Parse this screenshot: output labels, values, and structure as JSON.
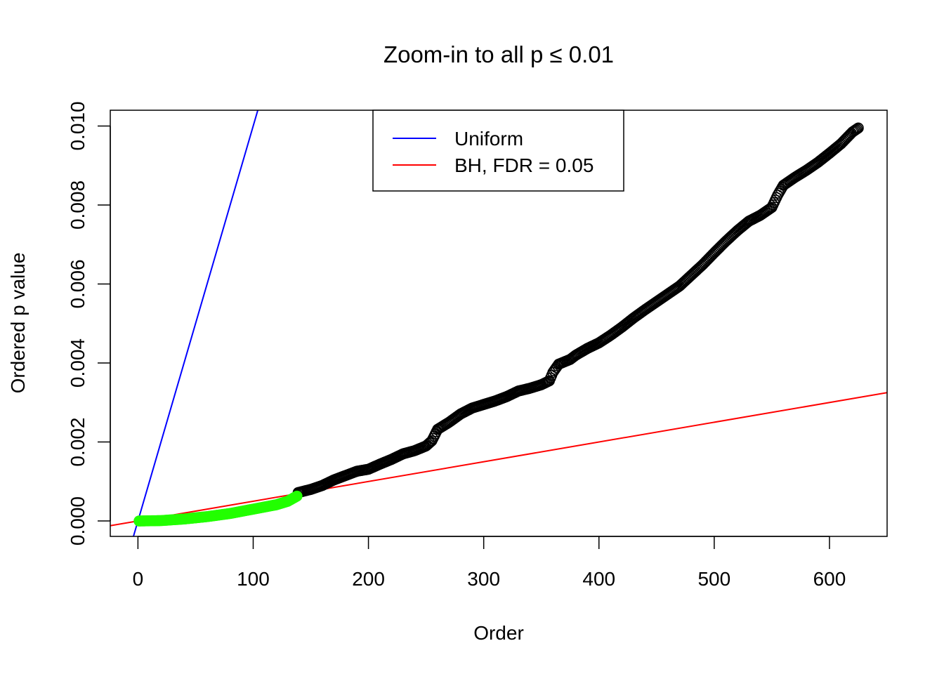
{
  "chart_data": {
    "type": "scatter",
    "title": "Zoom-in to all p ≤ 0.01",
    "xlabel": "Order",
    "ylabel": "Ordered p value",
    "xlim": [
      -24,
      650
    ],
    "ylim": [
      -0.00039,
      0.0104
    ],
    "x_ticks": [
      0,
      100,
      200,
      300,
      400,
      500,
      600
    ],
    "x_tick_labels": [
      "0",
      "100",
      "200",
      "300",
      "400",
      "500",
      "600"
    ],
    "y_ticks": [
      0,
      0.002,
      0.004,
      0.006,
      0.008,
      0.01
    ],
    "y_tick_labels": [
      "0.000",
      "0.002",
      "0.004",
      "0.006",
      "0.008",
      "0.010"
    ],
    "grid": false,
    "legend": {
      "position": "top-center",
      "entries": [
        {
          "label": "Uniform",
          "color": "#0000FF"
        },
        {
          "label": "BH, FDR = 0.05",
          "color": "#FF0000"
        }
      ]
    },
    "reference_lines": [
      {
        "label": "Uniform",
        "slope": 0.0001,
        "intercept": 0,
        "color": "#0000FF"
      },
      {
        "label": "BH, FDR = 0.05",
        "slope": 5e-06,
        "intercept": 0,
        "color": "#FF0000"
      }
    ],
    "series": [
      {
        "role": "significant",
        "color": "#22FF00",
        "filled": true,
        "count": 138,
        "points": [
          [
            1,
            0.0
          ],
          [
            20,
            1e-05
          ],
          [
            40,
            5e-05
          ],
          [
            60,
            0.00011
          ],
          [
            80,
            0.00019
          ],
          [
            100,
            0.0003
          ],
          [
            120,
            0.00041
          ],
          [
            130,
            0.0005
          ],
          [
            138,
            0.00063
          ]
        ]
      },
      {
        "role": "not-significant",
        "color": "#000000",
        "filled": false,
        "count": 487,
        "points": [
          [
            139,
            0.00072
          ],
          [
            150,
            0.0008
          ],
          [
            160,
            0.0009
          ],
          [
            170,
            0.00104
          ],
          [
            180,
            0.00115
          ],
          [
            190,
            0.00126
          ],
          [
            200,
            0.00131
          ],
          [
            210,
            0.00144
          ],
          [
            220,
            0.00156
          ],
          [
            230,
            0.0017
          ],
          [
            240,
            0.00178
          ],
          [
            250,
            0.0019
          ],
          [
            255,
            0.00203
          ],
          [
            260,
            0.00232
          ],
          [
            270,
            0.0025
          ],
          [
            280,
            0.00271
          ],
          [
            290,
            0.00286
          ],
          [
            300,
            0.00295
          ],
          [
            310,
            0.00304
          ],
          [
            320,
            0.00315
          ],
          [
            330,
            0.00329
          ],
          [
            340,
            0.00336
          ],
          [
            350,
            0.00345
          ],
          [
            357,
            0.00355
          ],
          [
            360,
            0.00376
          ],
          [
            365,
            0.00397
          ],
          [
            375,
            0.00409
          ],
          [
            380,
            0.0042
          ],
          [
            390,
            0.00437
          ],
          [
            400,
            0.00451
          ],
          [
            410,
            0.0047
          ],
          [
            420,
            0.00491
          ],
          [
            430,
            0.00514
          ],
          [
            440,
            0.00535
          ],
          [
            450,
            0.00555
          ],
          [
            460,
            0.00575
          ],
          [
            470,
            0.00595
          ],
          [
            480,
            0.00622
          ],
          [
            490,
            0.00649
          ],
          [
            500,
            0.00679
          ],
          [
            510,
            0.00708
          ],
          [
            520,
            0.00735
          ],
          [
            530,
            0.00759
          ],
          [
            540,
            0.00774
          ],
          [
            550,
            0.00794
          ],
          [
            555,
            0.00825
          ],
          [
            560,
            0.0085
          ],
          [
            570,
            0.0087
          ],
          [
            580,
            0.00888
          ],
          [
            590,
            0.00908
          ],
          [
            600,
            0.00931
          ],
          [
            610,
            0.00955
          ],
          [
            620,
            0.00985
          ],
          [
            625,
            0.00995
          ]
        ]
      }
    ]
  }
}
